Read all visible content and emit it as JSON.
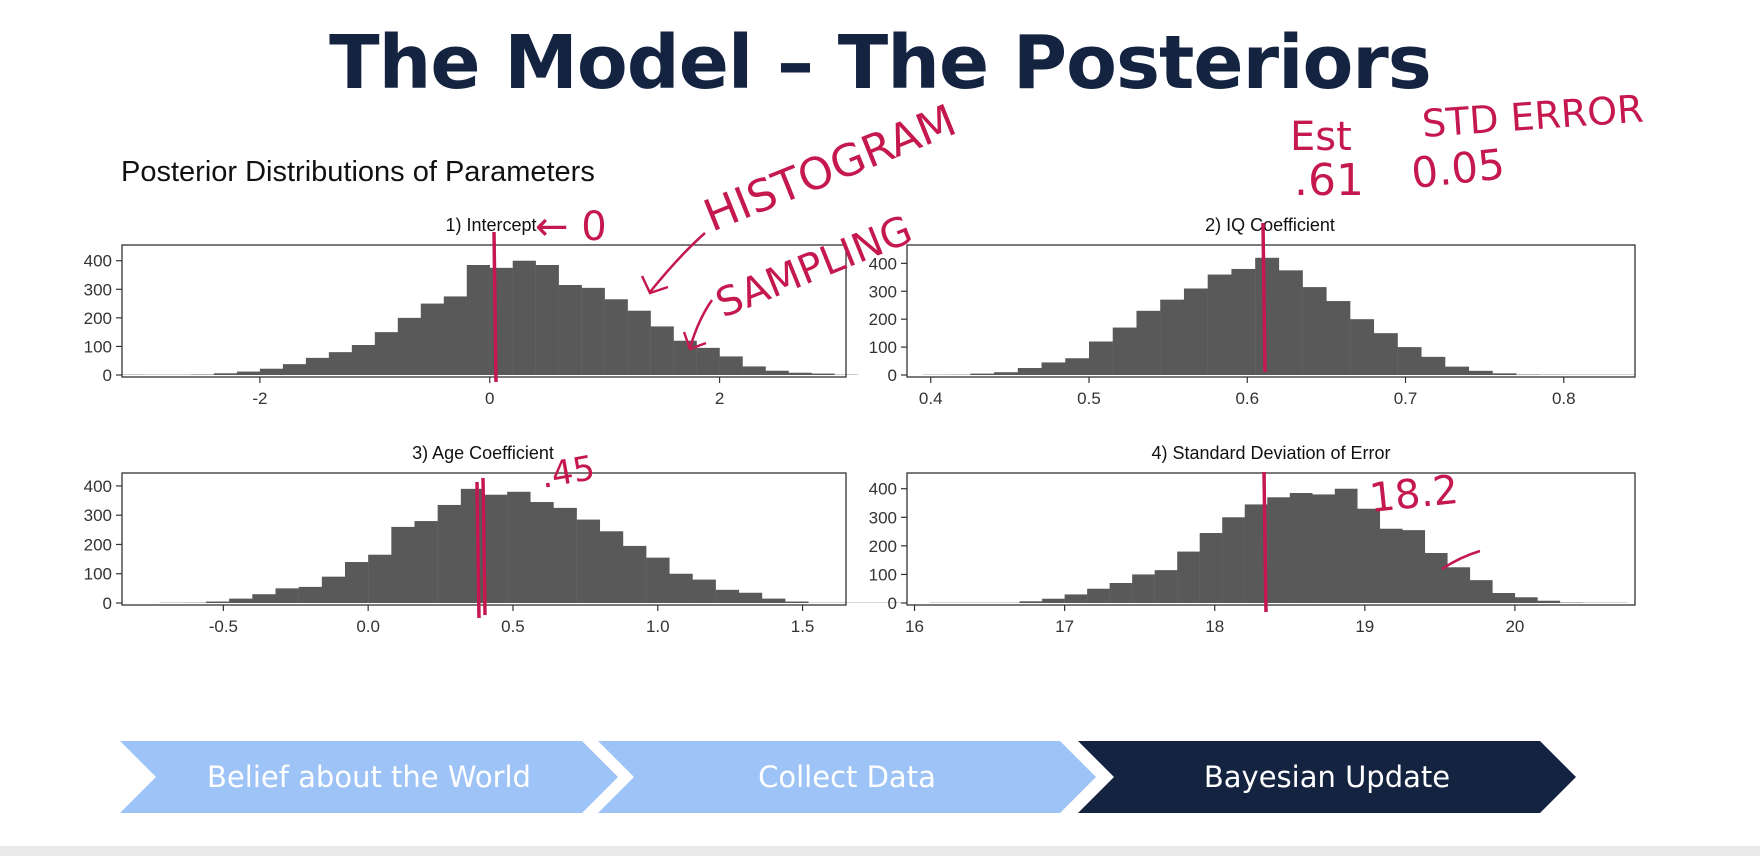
{
  "slide": {
    "title": "The Model – The Posteriors"
  },
  "figure": {
    "title": "Posterior Distributions of Parameters"
  },
  "chart_data": [
    {
      "type": "bar",
      "title": "1) Intercept",
      "xlim": [
        -3.2,
        3.1
      ],
      "ylim": [
        0,
        420
      ],
      "xticks": [
        -2,
        0,
        2
      ],
      "yticks": [
        0,
        100,
        200,
        300,
        400
      ],
      "bin_start": -3.2,
      "bin_width": 0.2,
      "values": [
        2,
        0,
        1,
        3,
        6,
        12,
        22,
        38,
        60,
        80,
        105,
        150,
        200,
        250,
        275,
        385,
        375,
        400,
        385,
        315,
        305,
        265,
        225,
        170,
        120,
        95,
        65,
        30,
        15,
        8,
        5,
        2
      ]
    },
    {
      "type": "bar",
      "title": "2) IQ Coefficient",
      "xlim": [
        0.385,
        0.845
      ],
      "ylim": [
        0,
        430
      ],
      "xticks": [
        0.4,
        0.5,
        0.6,
        0.7,
        0.8
      ],
      "yticks": [
        0,
        100,
        200,
        300,
        400
      ],
      "bin_start": 0.395,
      "bin_width": 0.015,
      "values": [
        1,
        2,
        5,
        10,
        25,
        45,
        60,
        120,
        170,
        230,
        270,
        310,
        360,
        380,
        420,
        375,
        315,
        265,
        200,
        150,
        100,
        65,
        30,
        15,
        6,
        3,
        2,
        1,
        1,
        0
      ]
    },
    {
      "type": "bar",
      "title": "3) Age Coefficient",
      "xlim": [
        -0.85,
        1.65
      ],
      "ylim": [
        0,
        410
      ],
      "xticks": [
        -0.5,
        0.0,
        0.5,
        1.0,
        1.5
      ],
      "yticks": [
        0,
        100,
        200,
        300,
        400
      ],
      "bin_start": -0.72,
      "bin_width": 0.08,
      "values": [
        1,
        2,
        5,
        15,
        30,
        50,
        55,
        90,
        140,
        165,
        260,
        280,
        335,
        390,
        370,
        380,
        345,
        325,
        285,
        245,
        195,
        155,
        100,
        80,
        45,
        35,
        15,
        5,
        1,
        0,
        0,
        1
      ]
    },
    {
      "type": "bar",
      "title": "4) Standard Deviation of Error",
      "xlim": [
        15.95,
        20.8
      ],
      "ylim": [
        0,
        420
      ],
      "xticks": [
        16,
        17,
        18,
        19,
        20
      ],
      "yticks": [
        0,
        100,
        200,
        300,
        400
      ],
      "bin_start": 16.1,
      "bin_width": 0.15,
      "values": [
        1,
        0,
        0,
        1,
        6,
        15,
        30,
        50,
        70,
        100,
        115,
        180,
        245,
        300,
        345,
        370,
        385,
        380,
        400,
        330,
        260,
        255,
        175,
        125,
        80,
        35,
        20,
        8,
        3,
        1,
        0
      ]
    }
  ],
  "annotations": {
    "intercept_note": "← 0",
    "histogram_note": "HISTOGRAM",
    "sampling_note": "SAMPLING",
    "est_label": "Est",
    "est_value": ".61",
    "se_label": "STD ERROR",
    "se_value": "0.05",
    "age_value": ".45",
    "sd_value": "18.2",
    "color": "#c4184f"
  },
  "process_steps": [
    {
      "label": "Belief about the World",
      "color": "#9ec4f7",
      "text_color": "#ffffff"
    },
    {
      "label": "Collect Data",
      "color": "#9ec4f7",
      "text_color": "#ffffff"
    },
    {
      "label": "Bayesian Update",
      "color": "#142340",
      "text_color": "#ffffff"
    }
  ]
}
